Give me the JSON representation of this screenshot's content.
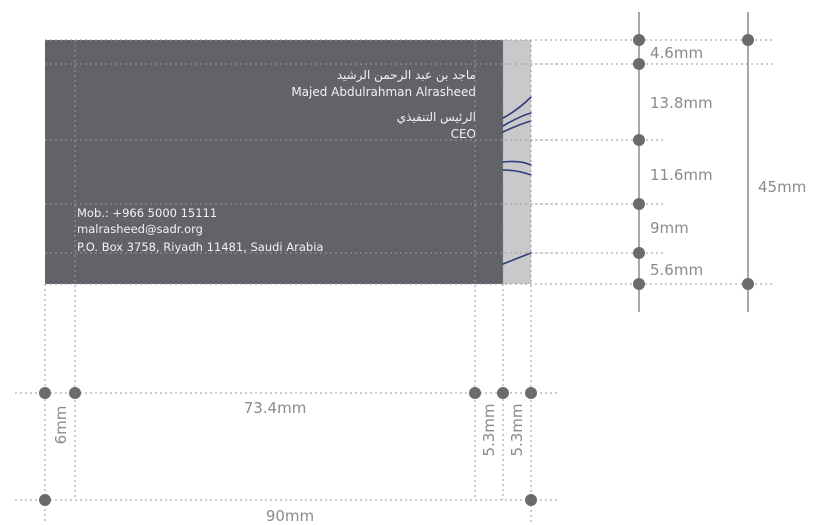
{
  "card": {
    "name_ar": "ماجد بن عبد الرحمن الرشيد",
    "name_en": "Majed Abdulrahman Alrasheed",
    "title_ar": "الرئيس التنفيذي",
    "title_en": "CEO",
    "mobile": "Mob.: +966 5000 15111",
    "email": "malrasheed@sadr.org",
    "address": "P.O. Box 3758, Riyadh 11481, Saudi Arabia"
  },
  "colors": {
    "card_fill": "#636268",
    "bleed_fill": "#c9c9cb",
    "flourish": "#2f3f7a",
    "dimension_dot": "#6b6b6b"
  },
  "vertical_dimensions": [
    {
      "label": "4.6mm"
    },
    {
      "label": "13.8mm"
    },
    {
      "label": "11.6mm"
    },
    {
      "label": "9mm"
    },
    {
      "label": "5.6mm"
    }
  ],
  "total_height_label": "45mm",
  "horizontal_dimensions": {
    "left_margin": "6mm",
    "content_width": "73.4mm",
    "right_margin": "5.3mm",
    "bleed": "5.3mm",
    "total_width": "90mm"
  }
}
